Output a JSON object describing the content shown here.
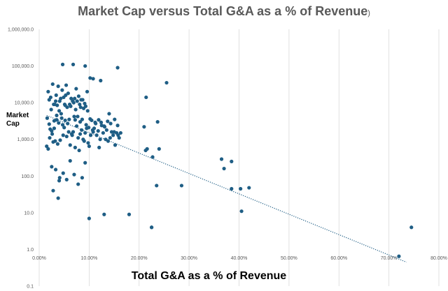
{
  "chart_data": {
    "type": "scatter",
    "title": "Market Cap versus Total G&A as a % of Revenue",
    "title_suffix": ")",
    "xlabel": "Total G&A as a % of Revenue",
    "ylabel_lines": [
      "Market",
      "Cap"
    ],
    "x_scale": "linear",
    "y_scale": "log",
    "xlim": [
      0,
      0.8
    ],
    "ylim": [
      0.1,
      1000000
    ],
    "x_ticks": [
      0,
      0.1,
      0.2,
      0.3,
      0.4,
      0.5,
      0.6,
      0.7,
      0.8
    ],
    "x_tick_labels": [
      "0.00%",
      "10.00%",
      "20.00%",
      "30.00%",
      "40.00%",
      "50.00%",
      "60.00%",
      "70.00%",
      "80.00%"
    ],
    "y_ticks": [
      0.1,
      1,
      10,
      100,
      1000,
      10000,
      100000,
      1000000
    ],
    "y_tick_labels": [
      "0.1",
      "1.0",
      "10.0",
      "100.0",
      "1,000.0",
      "10,000.0",
      "100,000.0",
      "1,000,000.0"
    ],
    "grid": "vertical",
    "marker_color": "#1f5e85",
    "trendline": {
      "type": "exponential",
      "style": "dotted",
      "color": "#1f5e85",
      "x": [
        0.015,
        0.735
      ],
      "y": [
        4500,
        0.45
      ]
    },
    "series": [
      {
        "name": "Companies",
        "x": [
          0.015,
          0.018,
          0.02,
          0.022,
          0.025,
          0.028,
          0.03,
          0.032,
          0.035,
          0.037,
          0.04,
          0.042,
          0.045,
          0.048,
          0.05,
          0.052,
          0.055,
          0.057,
          0.06,
          0.062,
          0.065,
          0.068,
          0.07,
          0.072,
          0.075,
          0.078,
          0.08,
          0.082,
          0.085,
          0.088,
          0.09,
          0.092,
          0.095,
          0.098,
          0.1,
          0.103,
          0.105,
          0.108,
          0.11,
          0.112,
          0.115,
          0.118,
          0.12,
          0.122,
          0.125,
          0.128,
          0.13,
          0.133,
          0.135,
          0.138,
          0.14,
          0.142,
          0.145,
          0.148,
          0.15,
          0.152,
          0.155,
          0.158,
          0.16,
          0.163,
          0.018,
          0.023,
          0.027,
          0.031,
          0.034,
          0.038,
          0.043,
          0.046,
          0.051,
          0.054,
          0.058,
          0.063,
          0.067,
          0.071,
          0.074,
          0.079,
          0.083,
          0.087,
          0.091,
          0.096,
          0.02,
          0.024,
          0.029,
          0.033,
          0.036,
          0.041,
          0.044,
          0.049,
          0.053,
          0.056,
          0.061,
          0.064,
          0.069,
          0.073,
          0.076,
          0.081,
          0.084,
          0.089,
          0.093,
          0.097,
          0.016,
          0.021,
          0.026,
          0.03,
          0.035,
          0.039,
          0.047,
          0.052,
          0.059,
          0.066,
          0.072,
          0.077,
          0.082,
          0.086,
          0.094,
          0.099,
          0.102,
          0.107,
          0.113,
          0.119,
          0.124,
          0.131,
          0.137,
          0.143,
          0.151,
          0.157,
          0.025,
          0.033,
          0.041,
          0.048,
          0.055,
          0.062,
          0.07,
          0.078,
          0.086,
          0.092,
          0.047,
          0.068,
          0.092,
          0.102,
          0.157,
          0.108,
          0.123,
          0.04,
          0.028,
          0.038,
          0.214,
          0.255,
          0.237,
          0.21,
          0.24,
          0.213,
          0.216,
          0.227,
          0.235,
          0.225,
          0.37,
          0.365,
          0.385,
          0.403,
          0.42,
          0.385,
          0.405,
          0.285,
          0.13,
          0.18,
          0.1,
          0.225,
          0.72,
          0.745
        ],
        "y": [
          650,
          550,
          2600,
          1900,
          1700,
          850,
          3200,
          900,
          4500,
          750,
          6000,
          950,
          3800,
          1300,
          2100,
          8500,
          1200,
          2700,
          3500,
          700,
          1400,
          1600,
          4200,
          600,
          2300,
          1100,
          500,
          3000,
          1800,
          1000,
          900,
          1500,
          2000,
          800,
          650,
          1300,
          3300,
          1600,
          2000,
          2900,
          1300,
          1700,
          600,
          1000,
          2400,
          1500,
          2300,
          1000,
          1800,
          900,
          5000,
          1100,
          1600,
          1300,
          1600,
          700,
          1500,
          1300,
          1100,
          1500,
          20000,
          14000,
          32000,
          9000,
          16000,
          28000,
          13000,
          22000,
          9000,
          30000,
          18000,
          8000,
          11000,
          13000,
          24000,
          15000,
          7500,
          12000,
          9500,
          20000,
          12000,
          6500,
          9000,
          11000,
          8500,
          11000,
          5000,
          14000,
          16000,
          7500,
          9000,
          13000,
          10000,
          6500,
          11000,
          9000,
          12000,
          7000,
          8000,
          6000,
          3800,
          1100,
          1400,
          2000,
          3400,
          2800,
          2500,
          3300,
          1600,
          1300,
          3400,
          4200,
          1400,
          3500,
          2500,
          2100,
          3600,
          1800,
          2700,
          3400,
          2900,
          2200,
          3100,
          2700,
          3500,
          2400,
          180,
          150,
          90,
          120,
          80,
          260,
          110,
          60,
          90,
          230,
          110000,
          110000,
          100000,
          47000,
          90000,
          45000,
          40000,
          75,
          40,
          25,
          14000,
          35000,
          3000,
          2200,
          550,
          500,
          550,
          330,
          55,
          4,
          160,
          290,
          250,
          45,
          48,
          45,
          11,
          55,
          9,
          9,
          7,
          4,
          0.65,
          4
        ]
      }
    ]
  }
}
